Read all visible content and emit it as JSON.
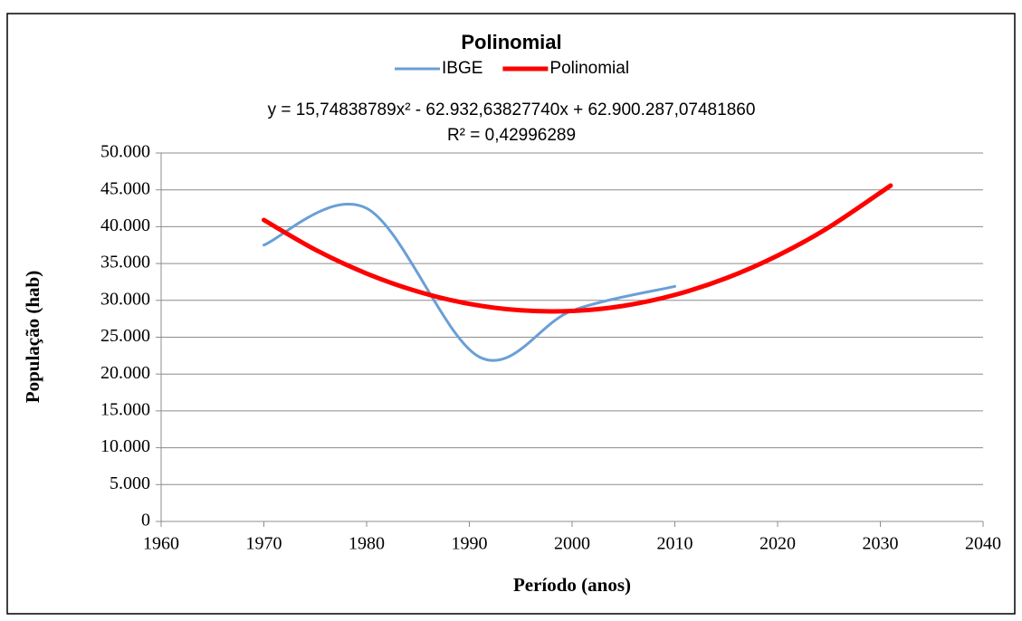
{
  "chart_data": {
    "type": "line",
    "title": "Polinomial",
    "annotations": [
      "y = 15,74838789x² - 62.932,63827740x + 62.900.287,07481860",
      "R² = 0,42996289"
    ],
    "xlabel": "Período (anos)",
    "ylabel": "População (hab)",
    "legend": "top",
    "grid": true,
    "smooth": true,
    "xlim": [
      1960,
      2040
    ],
    "xticks": [
      1960,
      1970,
      1980,
      1990,
      2000,
      2010,
      2020,
      2030,
      2040
    ],
    "ylim": [
      0,
      50000
    ],
    "yticks": [
      0,
      {
        "value": 5000,
        "label": "5.000"
      },
      {
        "value": 10000,
        "label": "10.000"
      },
      {
        "value": 15000,
        "label": "15.000"
      },
      {
        "value": 20000,
        "label": "20.000"
      },
      {
        "value": 25000,
        "label": "25.000"
      },
      {
        "value": 30000,
        "label": "30.000"
      },
      {
        "value": 35000,
        "label": "35.000"
      },
      {
        "value": 40000,
        "label": "40.000"
      },
      {
        "value": 45000,
        "label": "45.000"
      },
      {
        "value": 50000,
        "label": "50.000"
      }
    ],
    "series": [
      {
        "name": "IBGE",
        "color": "#699fd6",
        "width": 3,
        "x": [
          1970,
          1980,
          1991,
          2000,
          2010
        ],
        "values": [
          37500,
          42500,
          22300,
          28600,
          31900
        ]
      },
      {
        "name": "Polinomial",
        "color": "#ff0000",
        "width": 5,
        "x": [
          1970,
          1975,
          1980,
          1985,
          1990,
          1995,
          2000,
          2005,
          2010,
          2015,
          2020,
          2025,
          2031
        ],
        "values": [
          40908,
          36881,
          33642,
          31190,
          29525,
          28648,
          28559,
          29256,
          30741,
          33014,
          36073,
          39921,
          45577
        ]
      }
    ]
  }
}
